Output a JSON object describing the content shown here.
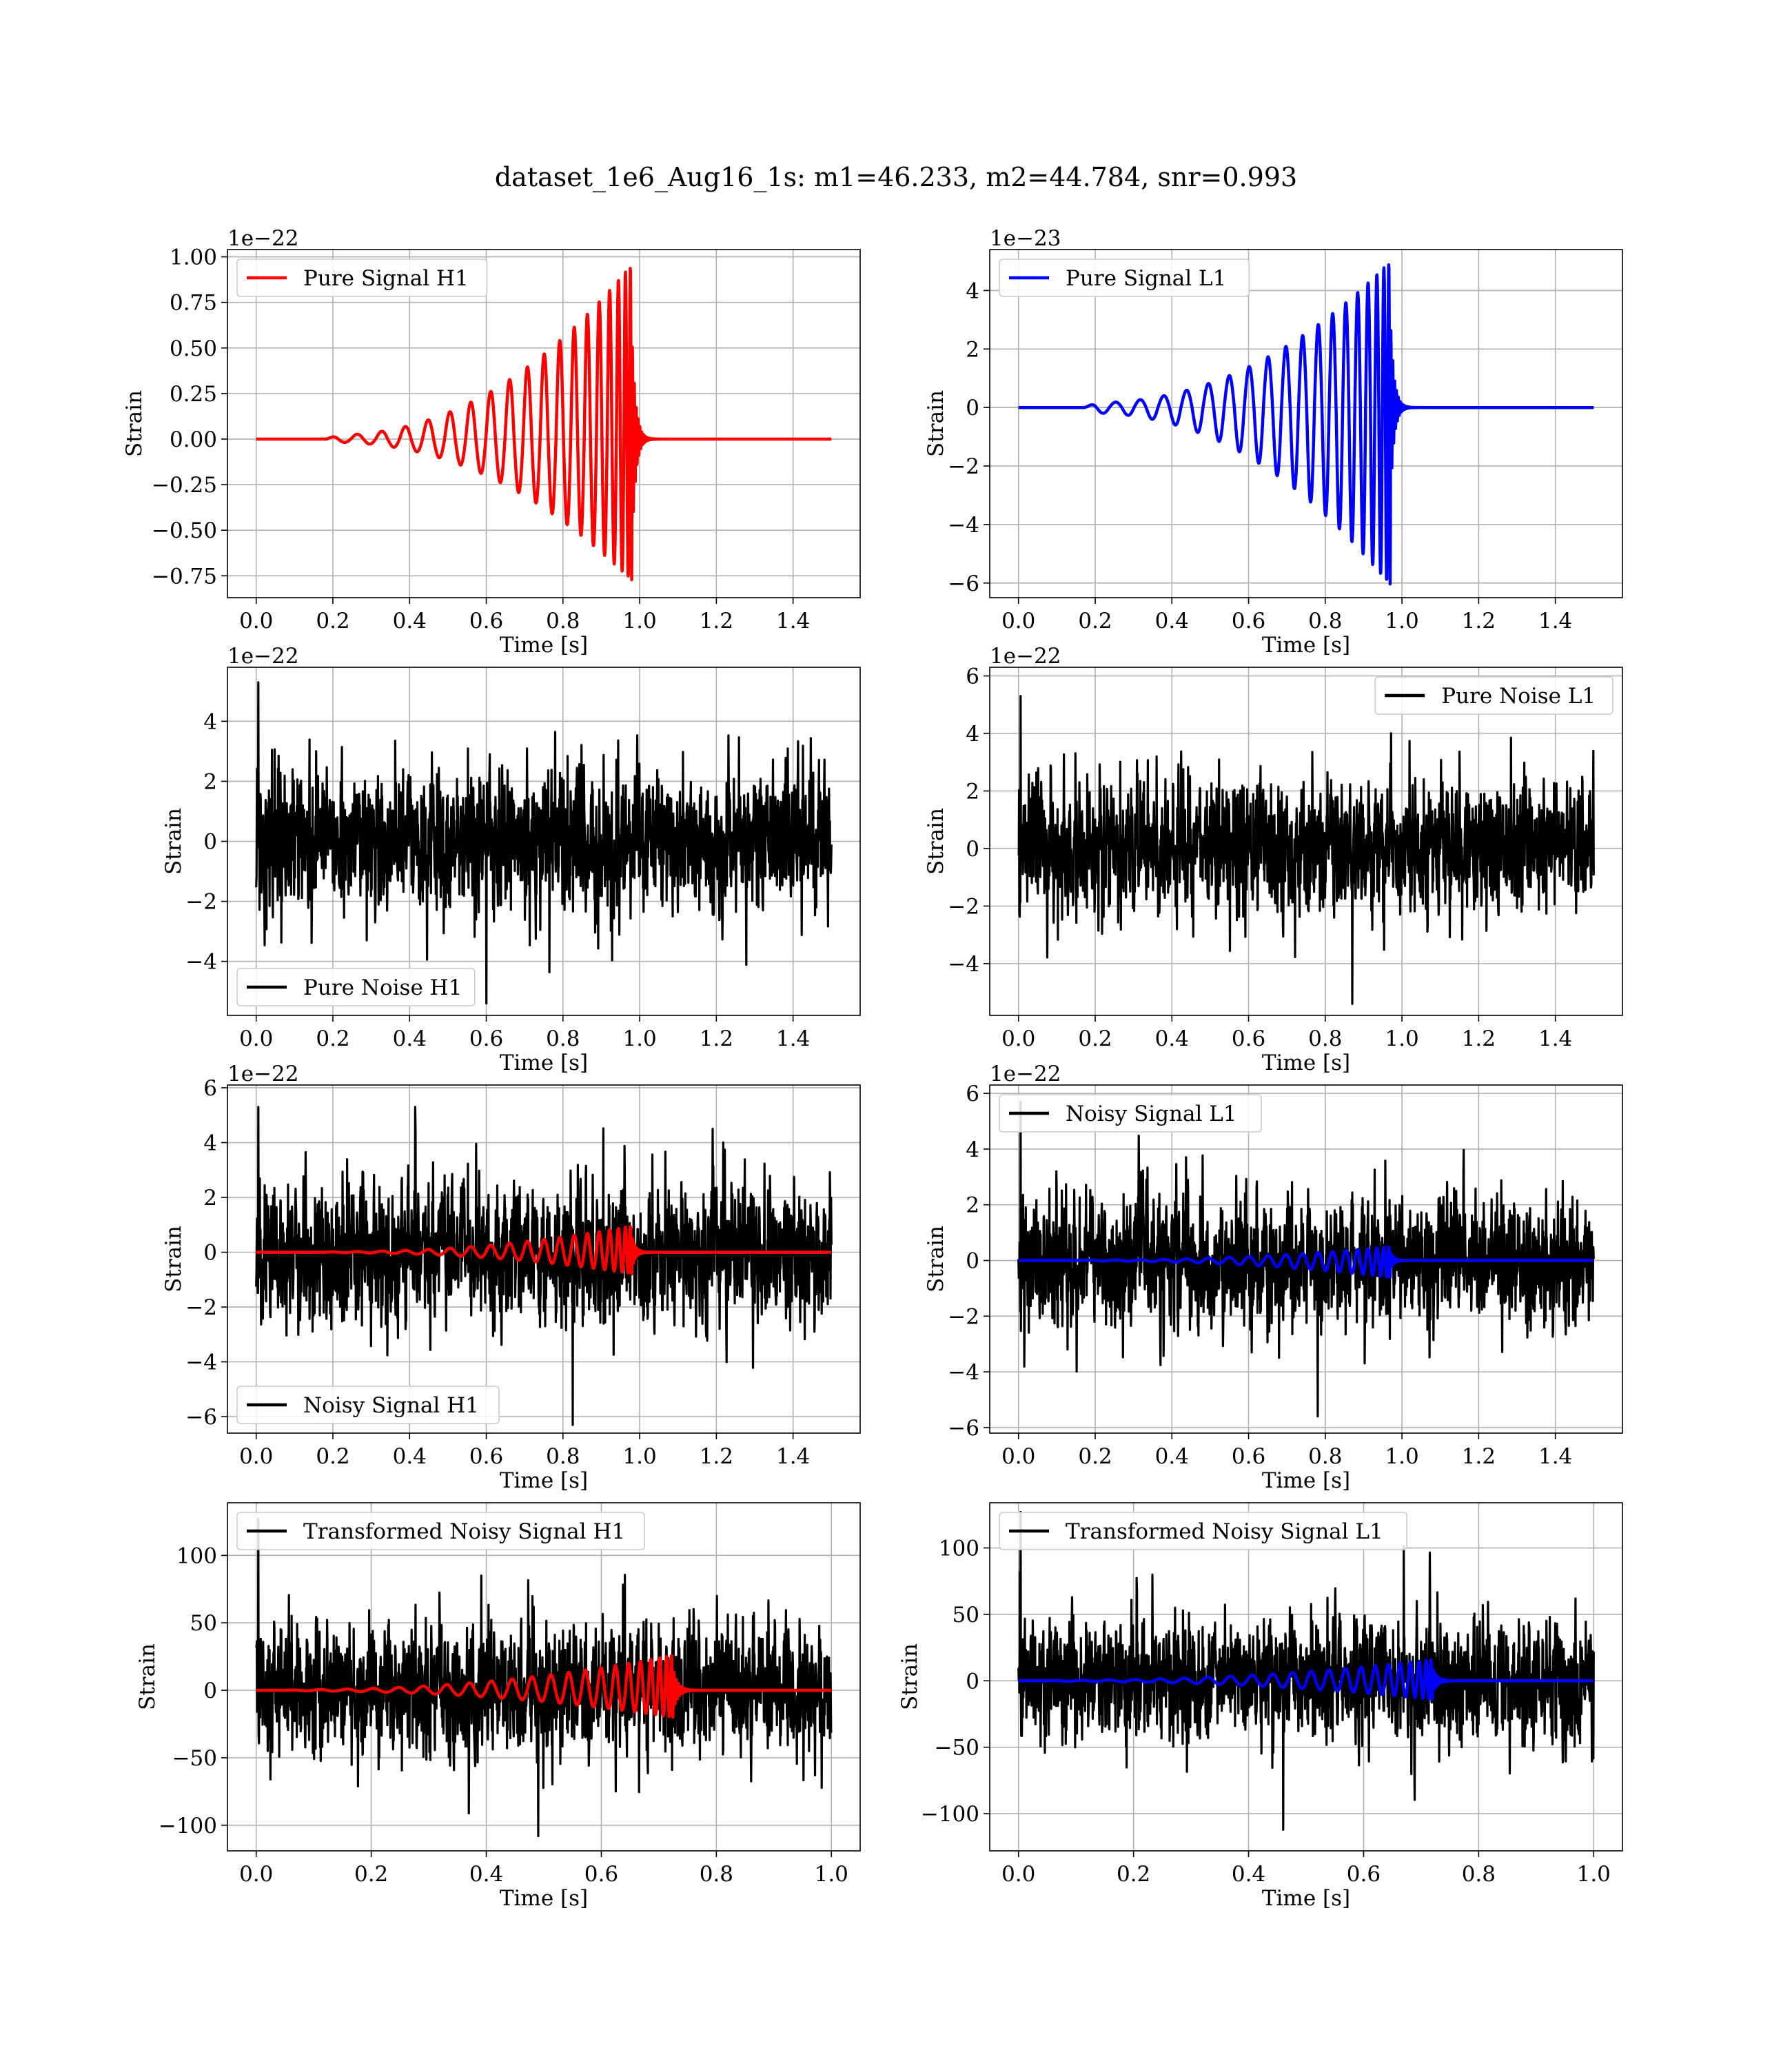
{
  "figure": {
    "suptitle": "dataset_1e6_Aug16_1s: m1=46.233, m2=44.784, snr=0.993"
  },
  "colors": {
    "h1_signal": "#ff0000",
    "l1_signal": "#0000ff",
    "noise": "#000000",
    "grid": "#b0b0b0",
    "background": "#ffffff"
  },
  "chart_data": [
    {
      "type": "line",
      "id": "pure-signal-h1",
      "title": "",
      "xlabel": "Time [s]",
      "ylabel": "Strain",
      "offset_text": "1e−22",
      "xlim": [
        -0.075,
        1.575
      ],
      "ylim": [
        -0.87,
        1.04
      ],
      "xticks": [
        0.0,
        0.2,
        0.4,
        0.6,
        0.8,
        1.0,
        1.2,
        1.4
      ],
      "xtick_labels": [
        "0.0",
        "0.2",
        "0.4",
        "0.6",
        "0.8",
        "1.0",
        "1.2",
        "1.4"
      ],
      "yticks": [
        -0.75,
        -0.5,
        -0.25,
        0.0,
        0.25,
        0.5,
        0.75,
        1.0
      ],
      "ytick_labels": [
        "−0.75",
        "−0.50",
        "−0.25",
        "0.00",
        "0.25",
        "0.50",
        "0.75",
        "1.00"
      ],
      "grid": true,
      "legend_position": "upper-left",
      "series": [
        {
          "name": "Pure Signal H1",
          "kind": "chirp",
          "color": "#ff0000",
          "legend": true,
          "x_start": 0.0,
          "x_end": 1.5,
          "t_merge": 0.98,
          "t_start": 0.18,
          "amp_min": 0.02,
          "amp_max": 0.96,
          "amp_neg_max": -0.78,
          "cycles": 19
        }
      ]
    },
    {
      "type": "line",
      "id": "pure-signal-l1",
      "title": "",
      "xlabel": "Time [s]",
      "ylabel": "Strain",
      "offset_text": "1e−23",
      "xlim": [
        -0.075,
        1.575
      ],
      "ylim": [
        -6.5,
        5.4
      ],
      "xticks": [
        0.0,
        0.2,
        0.4,
        0.6,
        0.8,
        1.0,
        1.2,
        1.4
      ],
      "xtick_labels": [
        "0.0",
        "0.2",
        "0.4",
        "0.6",
        "0.8",
        "1.0",
        "1.2",
        "1.4"
      ],
      "yticks": [
        -6,
        -4,
        -2,
        0,
        2,
        4
      ],
      "ytick_labels": [
        "−6",
        "−4",
        "−2",
        "0",
        "2",
        "4"
      ],
      "grid": true,
      "legend_position": "upper-left",
      "series": [
        {
          "name": "Pure Signal L1",
          "kind": "chirp",
          "color": "#0000ff",
          "legend": true,
          "x_start": 0.0,
          "x_end": 1.5,
          "t_merge": 0.97,
          "t_start": 0.17,
          "amp_min": 0.15,
          "amp_max": 5.0,
          "amp_neg_max": -6.1,
          "cycles": 19
        }
      ]
    },
    {
      "type": "line",
      "id": "pure-noise-h1",
      "title": "",
      "xlabel": "Time [s]",
      "ylabel": "Strain",
      "offset_text": "1e−22",
      "xlim": [
        -0.075,
        1.575
      ],
      "ylim": [
        -5.8,
        5.8
      ],
      "xticks": [
        0.0,
        0.2,
        0.4,
        0.6,
        0.8,
        1.0,
        1.2,
        1.4
      ],
      "xtick_labels": [
        "0.0",
        "0.2",
        "0.4",
        "0.6",
        "0.8",
        "1.0",
        "1.2",
        "1.4"
      ],
      "yticks": [
        -4,
        -2,
        0,
        2,
        4
      ],
      "ytick_labels": [
        "−4",
        "−2",
        "0",
        "2",
        "4"
      ],
      "grid": true,
      "legend_position": "lower-left",
      "series": [
        {
          "name": "Pure Noise H1",
          "kind": "noise",
          "color": "#000000",
          "legend": true,
          "x_start": 0.0,
          "x_end": 1.5,
          "sigma": 1.5,
          "max": 5.3,
          "min": -5.4
        }
      ]
    },
    {
      "type": "line",
      "id": "pure-noise-l1",
      "title": "",
      "xlabel": "Time [s]",
      "ylabel": "Strain",
      "offset_text": "1e−22",
      "xlim": [
        -0.075,
        1.575
      ],
      "ylim": [
        -5.8,
        6.3
      ],
      "xticks": [
        0.0,
        0.2,
        0.4,
        0.6,
        0.8,
        1.0,
        1.2,
        1.4
      ],
      "xtick_labels": [
        "0.0",
        "0.2",
        "0.4",
        "0.6",
        "0.8",
        "1.0",
        "1.2",
        "1.4"
      ],
      "yticks": [
        -4,
        -2,
        0,
        2,
        4,
        6
      ],
      "ytick_labels": [
        "−4",
        "−2",
        "0",
        "2",
        "4",
        "6"
      ],
      "grid": true,
      "legend_position": "upper-right",
      "series": [
        {
          "name": "Pure Noise L1",
          "kind": "noise",
          "color": "#000000",
          "legend": true,
          "x_start": 0.0,
          "x_end": 1.5,
          "sigma": 1.5,
          "max": 5.3,
          "min": -5.4
        }
      ]
    },
    {
      "type": "line",
      "id": "noisy-signal-h1",
      "title": "",
      "xlabel": "Time [s]",
      "ylabel": "Strain",
      "offset_text": "1e−22",
      "xlim": [
        -0.075,
        1.575
      ],
      "ylim": [
        -6.6,
        6.1
      ],
      "xticks": [
        0.0,
        0.2,
        0.4,
        0.6,
        0.8,
        1.0,
        1.2,
        1.4
      ],
      "xtick_labels": [
        "0.0",
        "0.2",
        "0.4",
        "0.6",
        "0.8",
        "1.0",
        "1.2",
        "1.4"
      ],
      "yticks": [
        -6,
        -4,
        -2,
        0,
        2,
        4,
        6
      ],
      "ytick_labels": [
        "−6",
        "−4",
        "−2",
        "0",
        "2",
        "4",
        "6"
      ],
      "grid": true,
      "legend_position": "lower-left",
      "series": [
        {
          "name": "Noisy Signal H1",
          "kind": "noise",
          "color": "#000000",
          "legend": true,
          "x_start": 0.0,
          "x_end": 1.5,
          "sigma": 1.6,
          "max": 5.3,
          "min": -6.3
        },
        {
          "name": "Pure Signal H1",
          "kind": "chirp",
          "color": "#ff0000",
          "legend": false,
          "x_start": 0.0,
          "x_end": 1.5,
          "t_merge": 0.98,
          "t_start": 0.18,
          "amp_min": 0.02,
          "amp_max": 0.96,
          "amp_neg_max": -0.78,
          "cycles": 19
        }
      ]
    },
    {
      "type": "line",
      "id": "noisy-signal-l1",
      "title": "",
      "xlabel": "Time [s]",
      "ylabel": "Strain",
      "offset_text": "1e−22",
      "xlim": [
        -0.075,
        1.575
      ],
      "ylim": [
        -6.2,
        6.3
      ],
      "xticks": [
        0.0,
        0.2,
        0.4,
        0.6,
        0.8,
        1.0,
        1.2,
        1.4
      ],
      "xtick_labels": [
        "0.0",
        "0.2",
        "0.4",
        "0.6",
        "0.8",
        "1.0",
        "1.2",
        "1.4"
      ],
      "yticks": [
        -6,
        -4,
        -2,
        0,
        2,
        4,
        6
      ],
      "ytick_labels": [
        "−6",
        "−4",
        "−2",
        "0",
        "2",
        "4",
        "6"
      ],
      "grid": true,
      "legend_position": "upper-left",
      "series": [
        {
          "name": "Noisy Signal L1",
          "kind": "noise",
          "color": "#000000",
          "legend": true,
          "x_start": 0.0,
          "x_end": 1.5,
          "sigma": 1.5,
          "max": 5.7,
          "min": -5.6
        },
        {
          "name": "Pure Signal L1",
          "kind": "chirp",
          "color": "#0000ff",
          "legend": false,
          "x_start": 0.0,
          "x_end": 1.5,
          "t_merge": 0.97,
          "t_start": 0.17,
          "amp_min": 0.015,
          "amp_max": 0.5,
          "amp_neg_max": -0.61,
          "cycles": 19
        }
      ]
    },
    {
      "type": "line",
      "id": "transformed-noisy-signal-h1",
      "title": "",
      "xlabel": "Time [s]",
      "ylabel": "Strain",
      "offset_text": "",
      "xlim": [
        -0.05,
        1.05
      ],
      "ylim": [
        -119,
        139
      ],
      "xticks": [
        0.0,
        0.2,
        0.4,
        0.6,
        0.8,
        1.0
      ],
      "xtick_labels": [
        "0.0",
        "0.2",
        "0.4",
        "0.6",
        "0.8",
        "1.0"
      ],
      "yticks": [
        -100,
        -50,
        0,
        50,
        100
      ],
      "ytick_labels": [
        "−100",
        "−50",
        "0",
        "50",
        "100"
      ],
      "grid": true,
      "legend_position": "upper-left",
      "series": [
        {
          "name": "Transformed Noisy Signal H1",
          "kind": "noise",
          "color": "#000000",
          "legend": true,
          "x_start": 0.0,
          "x_end": 1.0,
          "sigma": 30,
          "max": 127,
          "min": -108
        },
        {
          "name": "Transformed Pure Signal H1",
          "kind": "chirp",
          "color": "#ff0000",
          "legend": false,
          "x_start": 0.0,
          "x_end": 1.0,
          "t_merge": 0.725,
          "t_start": 0.05,
          "amp_min": 0.5,
          "amp_max": 26,
          "amp_neg_max": -20,
          "cycles": 22
        }
      ]
    },
    {
      "type": "line",
      "id": "transformed-noisy-signal-l1",
      "title": "",
      "xlabel": "Time [s]",
      "ylabel": "Strain",
      "offset_text": "",
      "xlim": [
        -0.05,
        1.05
      ],
      "ylim": [
        -128,
        134
      ],
      "xticks": [
        0.0,
        0.2,
        0.4,
        0.6,
        0.8,
        1.0
      ],
      "xtick_labels": [
        "0.0",
        "0.2",
        "0.4",
        "0.6",
        "0.8",
        "1.0"
      ],
      "yticks": [
        -100,
        -50,
        0,
        50,
        100
      ],
      "ytick_labels": [
        "−100",
        "−50",
        "0",
        "50",
        "100"
      ],
      "grid": true,
      "legend_position": "upper-left",
      "series": [
        {
          "name": "Transformed Noisy Signal L1",
          "kind": "noise",
          "color": "#000000",
          "legend": true,
          "x_start": 0.0,
          "x_end": 1.0,
          "sigma": 28,
          "max": 127,
          "min": -112
        },
        {
          "name": "Transformed Pure Signal L1",
          "kind": "chirp",
          "color": "#0000ff",
          "legend": false,
          "x_start": 0.0,
          "x_end": 1.0,
          "t_merge": 0.72,
          "t_start": 0.05,
          "amp_min": 0.4,
          "amp_max": 16,
          "amp_neg_max": -14,
          "cycles": 22
        }
      ]
    }
  ]
}
